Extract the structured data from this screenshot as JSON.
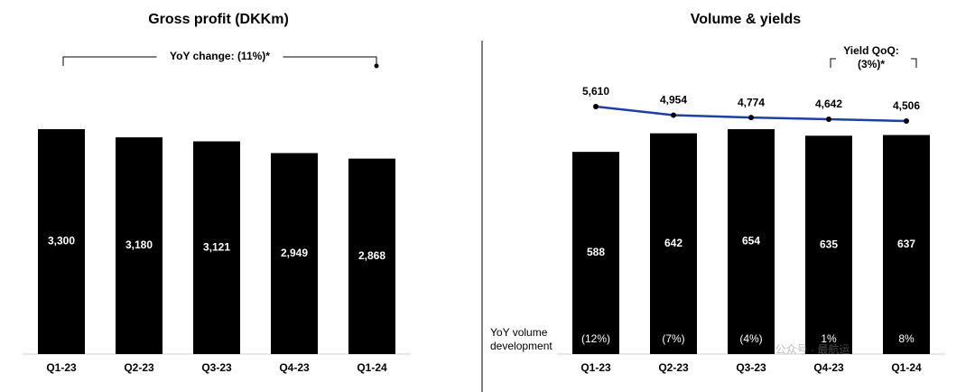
{
  "chart_data": [
    {
      "type": "bar",
      "title": "Gross profit (DKKm)",
      "categories": [
        "Q1-23",
        "Q2-23",
        "Q3-23",
        "Q4-23",
        "Q1-24"
      ],
      "values": [
        3300,
        3180,
        3121,
        2949,
        2868
      ],
      "value_labels": [
        "3,300",
        "3,180",
        "3,121",
        "2,949",
        "2,868"
      ],
      "color": "#000000",
      "ylim": [
        0,
        3870
      ],
      "annotation": "YoY change: (11%)*"
    },
    {
      "type": "bar-line",
      "title": "Volume & yields",
      "categories": [
        "Q1-23",
        "Q2-23",
        "Q3-23",
        "Q4-23",
        "Q1-24"
      ],
      "values": [
        588,
        642,
        654,
        635,
        637
      ],
      "value_labels": [
        "588",
        "642",
        "654",
        "635",
        "637"
      ],
      "color": "#000000",
      "ylim": [
        0,
        767
      ],
      "line": {
        "values": [
          5610,
          4954,
          4774,
          4642,
          4506
        ],
        "value_labels": [
          "5,610",
          "4,954",
          "4,774",
          "4,642",
          "4,506"
        ],
        "color": "#1f3fa3",
        "axis": "y2"
      },
      "y2lim": [
        -13300,
        6850
      ],
      "row": {
        "label": [
          "YoY volume",
          "development"
        ],
        "values": [
          "(12%)",
          "(7%)",
          "(4%)",
          "1%",
          "8%"
        ]
      },
      "annotation": [
        "Yield QoQ:",
        "(3%)*"
      ]
    }
  ],
  "watermark": "公众号 · 最航运"
}
